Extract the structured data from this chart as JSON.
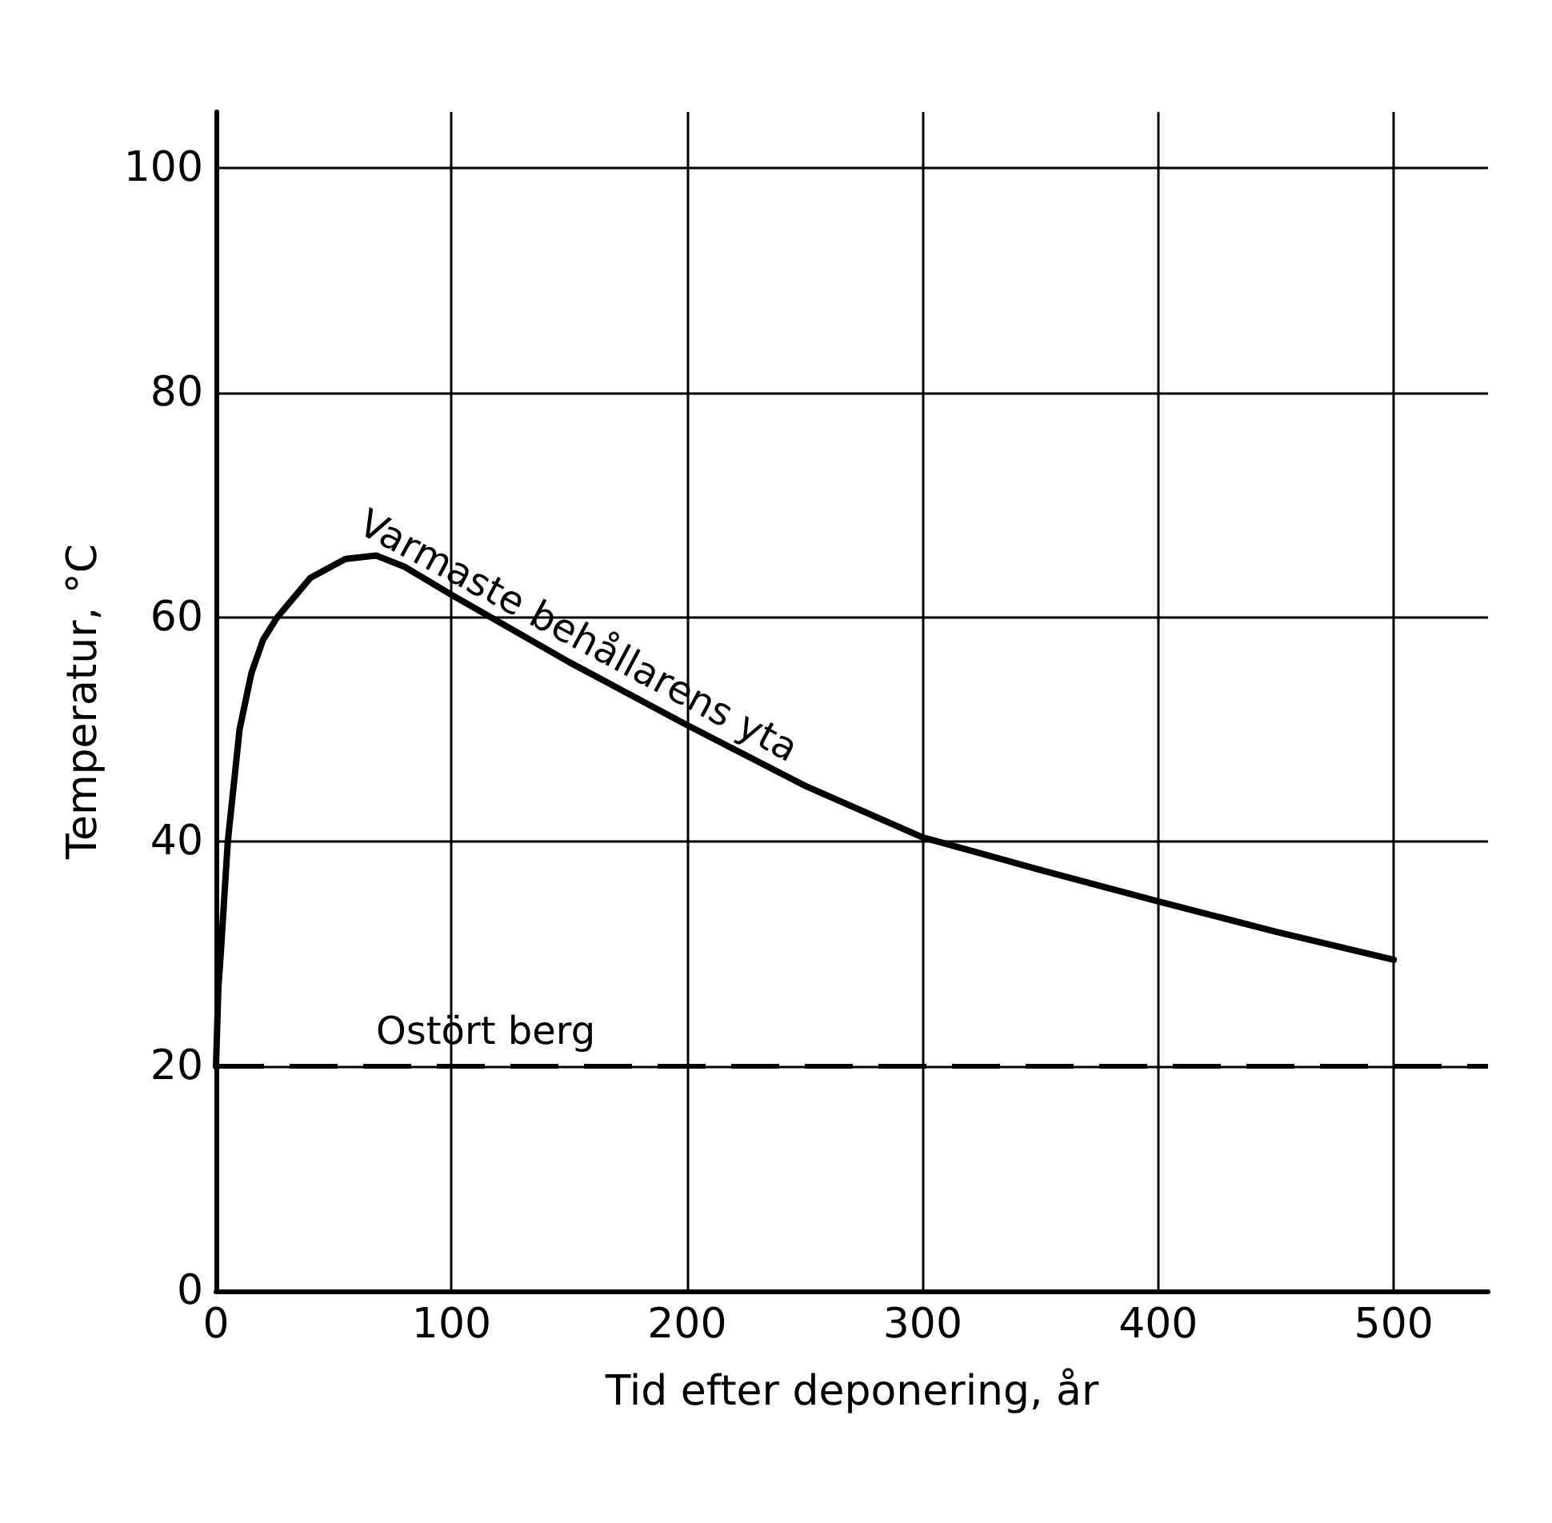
{
  "chart_data": {
    "type": "line",
    "xlabel": "Tid efter deponering, år",
    "ylabel": "Temperatur, °C",
    "series": [
      {
        "name": "Varmaste behållarens yta",
        "color": "#000000",
        "x": [
          0,
          1,
          2,
          5,
          10,
          15,
          20,
          26,
          40,
          55,
          68,
          80,
          100,
          150,
          200,
          250,
          300,
          350,
          400,
          450,
          500
        ],
        "values": [
          20,
          27,
          30,
          40,
          50,
          55,
          58,
          60,
          63.5,
          65.2,
          65.5,
          64.5,
          62,
          56,
          50.4,
          45,
          40.4,
          37.5,
          34.7,
          32,
          29.5
        ]
      }
    ],
    "xlim": [
      0,
      540
    ],
    "xticks": [
      0,
      100,
      200,
      300,
      400,
      500
    ],
    "ylim": [
      0,
      105
    ],
    "yticks": [
      0,
      20,
      40,
      60,
      80,
      100
    ],
    "ref_lines": [
      {
        "axis": "y",
        "value": 20,
        "label": "Ostört berg",
        "color": "#000000",
        "line_style": "dashed"
      }
    ],
    "grid": true,
    "legend": false,
    "marker": "none",
    "line_style": "solid"
  }
}
